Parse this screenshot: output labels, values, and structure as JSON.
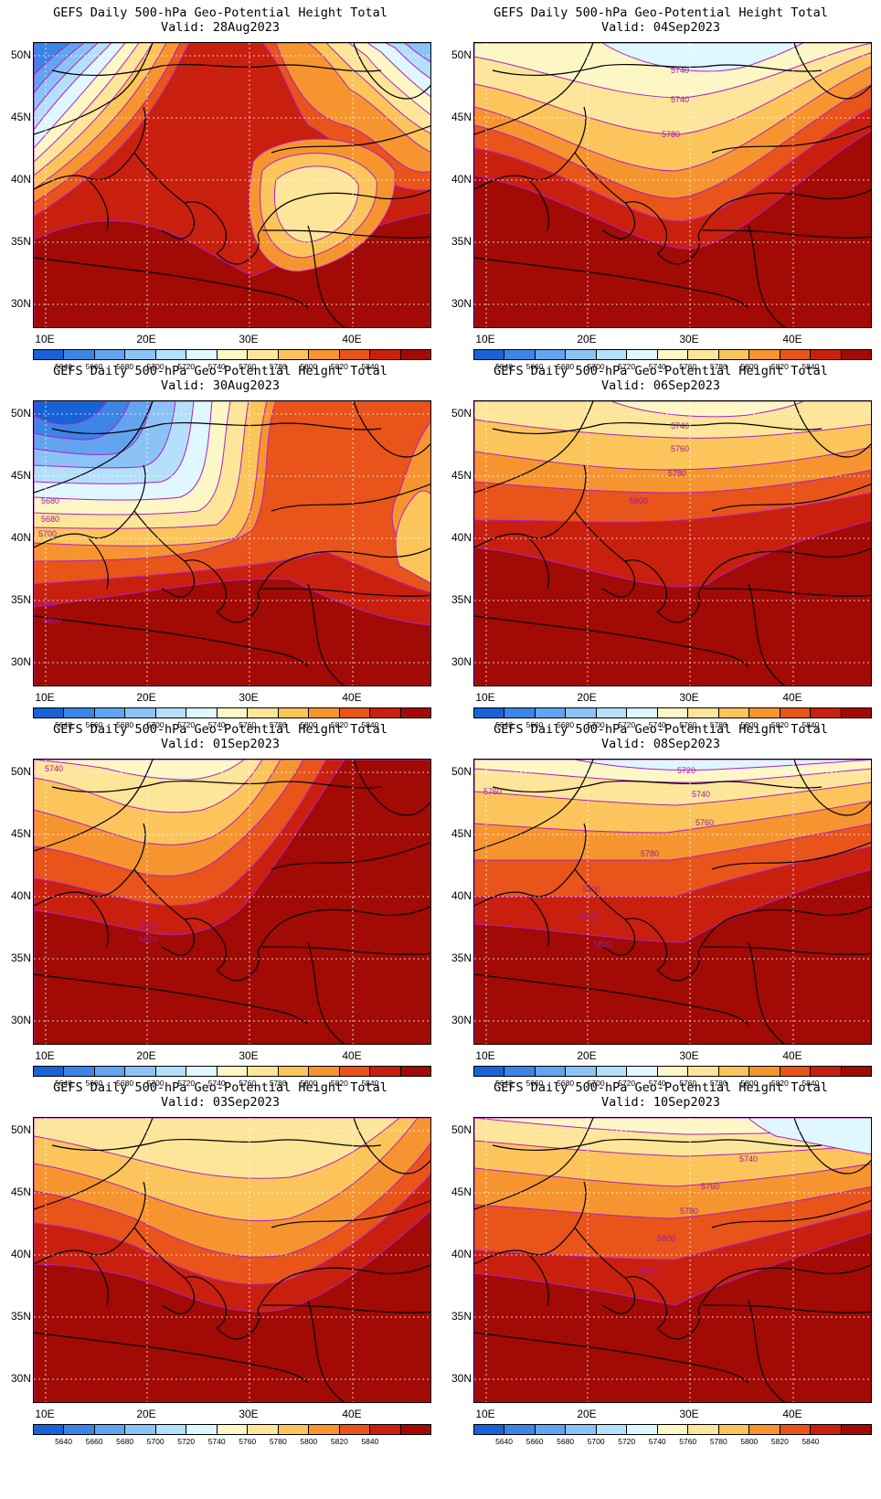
{
  "colors": [
    "#1763d6",
    "#3c85e6",
    "#62a4ef",
    "#8cc3f6",
    "#b5e0fb",
    "#dff7fe",
    "#fdf7c6",
    "#fde59a",
    "#fbc55c",
    "#f6952f",
    "#e8541a",
    "#c91f0f",
    "#a10a05"
  ],
  "colorbar_labels": [
    "5640",
    "5660",
    "5680",
    "5700",
    "5720",
    "5740",
    "5760",
    "5780",
    "5800",
    "5820",
    "5840"
  ],
  "lat_labels": [
    "50N",
    "45N",
    "40N",
    "35N",
    "30N"
  ],
  "lon_labels": [
    "10E",
    "20E",
    "30E",
    "40E"
  ],
  "panels": [
    {
      "title": "GEFS Daily 500-hPa Geo-Potential Height Total",
      "valid": "Valid: 28Aug2023",
      "contour_labels": []
    },
    {
      "title": "GEFS Daily 500-hPa Geo-Potential Height Total",
      "valid": "Valid: 04Sep2023",
      "contour_labels": [
        "5740",
        "5740",
        "5780"
      ]
    },
    {
      "title": "GEFS Daily 500-hPa Geo-Potential Height Total",
      "valid": "Valid: 30Aug2023",
      "contour_labels": [
        "5680",
        "5680",
        "5700",
        "5820",
        "5800"
      ]
    },
    {
      "title": "GEFS Daily 500-hPa Geo-Potential Height Total",
      "valid": "Valid: 06Sep2023",
      "contour_labels": [
        "5740",
        "5760",
        "5780",
        "5800"
      ]
    },
    {
      "title": "GEFS Daily 500-hPa Geo-Potential Height Total",
      "valid": "Valid: 01Sep2023",
      "contour_labels": [
        "5740",
        "5820",
        "5820"
      ]
    },
    {
      "title": "GEFS Daily 500-hPa Geo-Potential Height Total",
      "valid": "Valid: 08Sep2023",
      "contour_labels": [
        "5720",
        "5760",
        "5740",
        "5760",
        "5780",
        "5800",
        "5820",
        "5820"
      ]
    },
    {
      "title": "GEFS Daily 500-hPa Geo-Potential Height Total",
      "valid": "Valid: 03Sep2023",
      "contour_labels": []
    },
    {
      "title": "GEFS Daily 500-hPa Geo-Potential Height Total",
      "valid": "Valid: 10Sep2023",
      "contour_labels": [
        "5740",
        "5760",
        "5780",
        "5800",
        "5820"
      ]
    }
  ]
}
